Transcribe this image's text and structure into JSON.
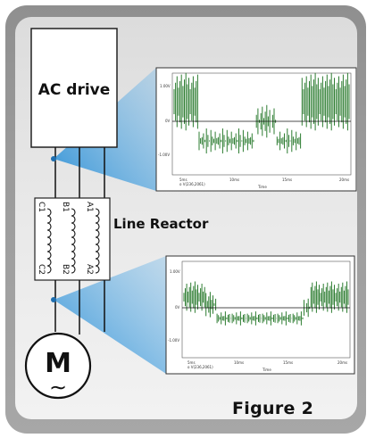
{
  "drive": {
    "label": "AC drive"
  },
  "reactor": {
    "label": "Line Reactor",
    "terminals_top": [
      "C1",
      "B1",
      "A1"
    ],
    "terminals_bottom": [
      "C2",
      "B2",
      "A2"
    ]
  },
  "motor": {
    "letter": "M",
    "symbol": "∼"
  },
  "scope_top": {
    "y_ticks": [
      "1.00V",
      "0V",
      "-1.00V"
    ],
    "x_ticks": [
      "5ms",
      "10ms",
      "15ms",
      "20ms"
    ],
    "x_axis_label": "Time",
    "trace_label": "o V(236,2061)",
    "trace_color": "#2e7d32"
  },
  "scope_bottom": {
    "y_ticks": [
      "1.00V",
      "0V",
      "-1.00V"
    ],
    "x_ticks": [
      "5ms",
      "10ms",
      "15ms",
      "20ms"
    ],
    "x_axis_label": "Time",
    "trace_label": "o V(236,2061)",
    "trace_color": "#2e7d32"
  },
  "caption": "Figure 2",
  "colors": {
    "beam": "#2a8fd6",
    "trace": "#2e7d32"
  }
}
